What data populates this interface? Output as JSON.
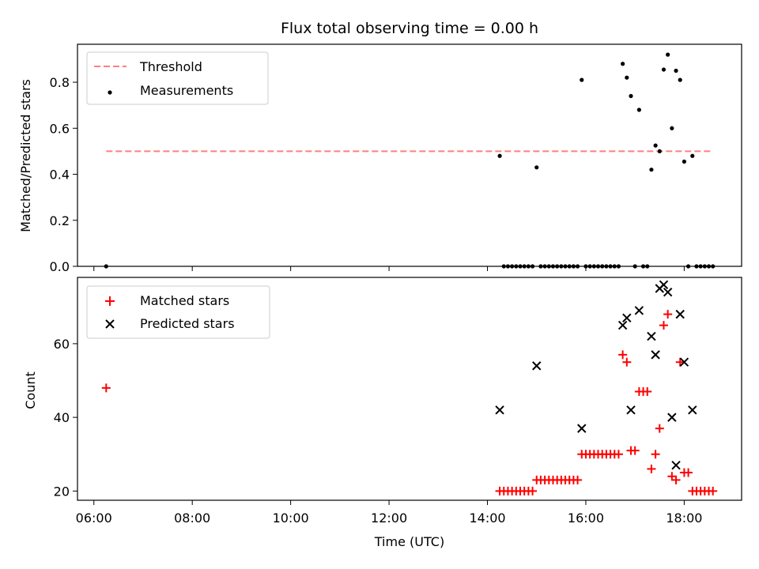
{
  "chart_data": [
    {
      "type": "scatter",
      "title": "Flux total observing time = 0.00 h",
      "xlabel": "",
      "ylabel": "Matched/Predicted stars",
      "xlim": [
        "05:40",
        "19:10"
      ],
      "ylim": [
        0,
        0.965
      ],
      "yticks": [
        "0.0",
        "0.2",
        "0.4",
        "0.6",
        "0.8"
      ],
      "threshold": {
        "name": "Threshold",
        "value": 0.5,
        "x_range": [
          "06:15",
          "18:35"
        ],
        "color": "#ff7f7f"
      },
      "legend_loc": "upper-left",
      "series": [
        {
          "name": "Measurements",
          "color": "#000000",
          "points": [
            [
              "06:15",
              0.0
            ],
            [
              "14:15",
              0.48
            ],
            [
              "15:00",
              0.43
            ],
            [
              "15:55",
              0.81
            ],
            [
              "16:45",
              0.88
            ],
            [
              "16:50",
              0.82
            ],
            [
              "16:55",
              0.74
            ],
            [
              "17:05",
              0.68
            ],
            [
              "17:20",
              0.42
            ],
            [
              "17:25",
              0.525
            ],
            [
              "17:30",
              0.5
            ],
            [
              "17:35",
              0.855
            ],
            [
              "17:40",
              0.92
            ],
            [
              "17:45",
              0.6
            ],
            [
              "17:50",
              0.85
            ],
            [
              "17:55",
              0.81
            ],
            [
              "18:00",
              0.455
            ],
            [
              "18:10",
              0.48
            ],
            [
              "14:20",
              0.0
            ],
            [
              "14:25",
              0.0
            ],
            [
              "14:30",
              0.0
            ],
            [
              "14:35",
              0.0
            ],
            [
              "14:40",
              0.0
            ],
            [
              "14:45",
              0.0
            ],
            [
              "14:50",
              0.0
            ],
            [
              "14:55",
              0.0
            ],
            [
              "15:05",
              0.0
            ],
            [
              "15:10",
              0.0
            ],
            [
              "15:15",
              0.0
            ],
            [
              "15:20",
              0.0
            ],
            [
              "15:25",
              0.0
            ],
            [
              "15:30",
              0.0
            ],
            [
              "15:35",
              0.0
            ],
            [
              "15:40",
              0.0
            ],
            [
              "15:45",
              0.0
            ],
            [
              "15:50",
              0.0
            ],
            [
              "16:00",
              0.0
            ],
            [
              "16:05",
              0.0
            ],
            [
              "16:10",
              0.0
            ],
            [
              "16:15",
              0.0
            ],
            [
              "16:20",
              0.0
            ],
            [
              "16:25",
              0.0
            ],
            [
              "16:30",
              0.0
            ],
            [
              "16:35",
              0.0
            ],
            [
              "16:40",
              0.0
            ],
            [
              "17:00",
              0.0
            ],
            [
              "17:10",
              0.0
            ],
            [
              "17:15",
              0.0
            ],
            [
              "18:05",
              0.0
            ],
            [
              "18:15",
              0.0
            ],
            [
              "18:20",
              0.0
            ],
            [
              "18:25",
              0.0
            ],
            [
              "18:30",
              0.0
            ],
            [
              "18:35",
              0.0
            ]
          ]
        }
      ]
    },
    {
      "type": "scatter",
      "title": "",
      "xlabel": "Time (UTC)",
      "ylabel": "Count",
      "xlim": [
        "05:40",
        "19:10"
      ],
      "ylim": [
        17.5,
        78
      ],
      "xticks": [
        "06:00",
        "08:00",
        "10:00",
        "12:00",
        "14:00",
        "16:00",
        "18:00"
      ],
      "yticks": [
        "20",
        "40",
        "60"
      ],
      "legend_loc": "upper-left",
      "series": [
        {
          "name": "Matched stars",
          "marker": "plus",
          "color": "#ff0000",
          "points": [
            [
              "06:15",
              48
            ],
            [
              "14:15",
              20
            ],
            [
              "14:20",
              20
            ],
            [
              "14:25",
              20
            ],
            [
              "14:30",
              20
            ],
            [
              "14:35",
              20
            ],
            [
              "14:40",
              20
            ],
            [
              "14:45",
              20
            ],
            [
              "14:50",
              20
            ],
            [
              "14:55",
              20
            ],
            [
              "15:00",
              23
            ],
            [
              "15:05",
              23
            ],
            [
              "15:10",
              23
            ],
            [
              "15:15",
              23
            ],
            [
              "15:20",
              23
            ],
            [
              "15:25",
              23
            ],
            [
              "15:30",
              23
            ],
            [
              "15:35",
              23
            ],
            [
              "15:40",
              23
            ],
            [
              "15:45",
              23
            ],
            [
              "15:50",
              23
            ],
            [
              "15:55",
              30
            ],
            [
              "16:00",
              30
            ],
            [
              "16:05",
              30
            ],
            [
              "16:10",
              30
            ],
            [
              "16:15",
              30
            ],
            [
              "16:20",
              30
            ],
            [
              "16:25",
              30
            ],
            [
              "16:30",
              30
            ],
            [
              "16:35",
              30
            ],
            [
              "16:40",
              30
            ],
            [
              "16:45",
              57
            ],
            [
              "16:50",
              55
            ],
            [
              "16:55",
              31
            ],
            [
              "17:00",
              31
            ],
            [
              "17:05",
              47
            ],
            [
              "17:10",
              47
            ],
            [
              "17:15",
              47
            ],
            [
              "17:20",
              26
            ],
            [
              "17:25",
              30
            ],
            [
              "17:30",
              37
            ],
            [
              "17:35",
              65
            ],
            [
              "17:40",
              68
            ],
            [
              "17:45",
              24
            ],
            [
              "17:50",
              23
            ],
            [
              "17:55",
              55
            ],
            [
              "18:00",
              25
            ],
            [
              "18:05",
              25
            ],
            [
              "18:10",
              20
            ],
            [
              "18:15",
              20
            ],
            [
              "18:20",
              20
            ],
            [
              "18:25",
              20
            ],
            [
              "18:30",
              20
            ],
            [
              "18:35",
              20
            ]
          ]
        },
        {
          "name": "Predicted stars",
          "marker": "x",
          "color": "#000000",
          "points": [
            [
              "14:15",
              42
            ],
            [
              "15:00",
              54
            ],
            [
              "15:55",
              37
            ],
            [
              "16:45",
              65
            ],
            [
              "16:50",
              67
            ],
            [
              "16:55",
              42
            ],
            [
              "17:05",
              69
            ],
            [
              "17:20",
              62
            ],
            [
              "17:25",
              57
            ],
            [
              "17:30",
              75
            ],
            [
              "17:35",
              76
            ],
            [
              "17:40",
              74
            ],
            [
              "17:45",
              40
            ],
            [
              "17:50",
              27
            ],
            [
              "17:55",
              68
            ],
            [
              "18:00",
              55
            ],
            [
              "18:10",
              42
            ]
          ]
        }
      ]
    }
  ]
}
